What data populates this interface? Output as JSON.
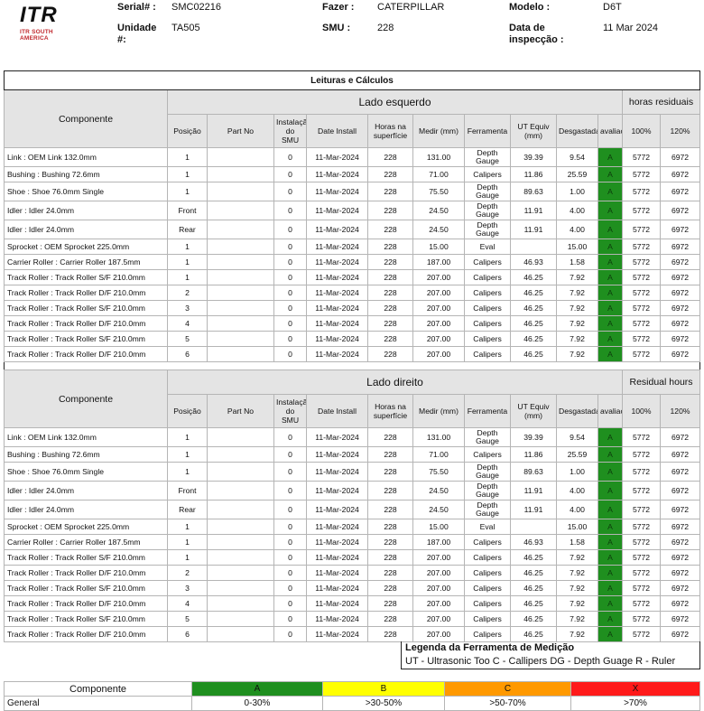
{
  "header": {
    "logo_text": "ITR",
    "logo_sub": "ITR SOUTH AMERICA",
    "serial_label": "Serial# :",
    "serial": "SMC02216",
    "unit_label": "Unidade #:",
    "unit": "TA505",
    "make_label": "Fazer :",
    "make": "CATERPILLAR",
    "smu_label": "SMU :",
    "smu": "228",
    "model_label": "Modelo :",
    "model": "D6T",
    "date_label": "Data de inspecção :",
    "date": "11 Mar 2024"
  },
  "table_title": "Leituras e Cálculos",
  "col": {
    "componente": "Componente",
    "posicao": "Posição",
    "part_no": "Part No",
    "instalacao": "Instalação do SMU",
    "date_install": "Date Install",
    "horas": "Horas na superfície",
    "medir": "Medir (mm)",
    "ferramenta": "Ferramenta",
    "ut_equiv": "UT Equiv (mm)",
    "desgastada": "Desgastada%",
    "avaliacao": "avaliação",
    "p100": "100%",
    "p120": "120%"
  },
  "left": {
    "section": "Lado esquerdo",
    "residual": "horas residuais"
  },
  "right": {
    "section": "Lado direito",
    "residual": "Residual hours"
  },
  "rows": [
    {
      "comp": "Link : OEM Link 132.0mm",
      "pos": "1",
      "part": "",
      "inst": "0",
      "date": "11-Mar-2024",
      "horas": "228",
      "medir": "131.00",
      "tool": "Depth Gauge",
      "ut": "39.39",
      "wear": "9.54",
      "av": "A",
      "r100": "5772",
      "r120": "6972"
    },
    {
      "comp": "Bushing : Bushing 72.6mm",
      "pos": "1",
      "part": "",
      "inst": "0",
      "date": "11-Mar-2024",
      "horas": "228",
      "medir": "71.00",
      "tool": "Calipers",
      "ut": "11.86",
      "wear": "25.59",
      "av": "A",
      "r100": "5772",
      "r120": "6972"
    },
    {
      "comp": "Shoe : Shoe 76.0mm Single",
      "pos": "1",
      "part": "",
      "inst": "0",
      "date": "11-Mar-2024",
      "horas": "228",
      "medir": "75.50",
      "tool": "Depth Gauge",
      "ut": "89.63",
      "wear": "1.00",
      "av": "A",
      "r100": "5772",
      "r120": "6972"
    },
    {
      "comp": "Idler : Idler 24.0mm",
      "pos": "Front",
      "part": "",
      "inst": "0",
      "date": "11-Mar-2024",
      "horas": "228",
      "medir": "24.50",
      "tool": "Depth Gauge",
      "ut": "11.91",
      "wear": "4.00",
      "av": "A",
      "r100": "5772",
      "r120": "6972"
    },
    {
      "comp": "Idler : Idler 24.0mm",
      "pos": "Rear",
      "part": "",
      "inst": "0",
      "date": "11-Mar-2024",
      "horas": "228",
      "medir": "24.50",
      "tool": "Depth Gauge",
      "ut": "11.91",
      "wear": "4.00",
      "av": "A",
      "r100": "5772",
      "r120": "6972"
    },
    {
      "comp": "Sprocket : OEM Sprocket 225.0mm",
      "pos": "1",
      "part": "",
      "inst": "0",
      "date": "11-Mar-2024",
      "horas": "228",
      "medir": "15.00",
      "tool": "Eval",
      "ut": "",
      "wear": "15.00",
      "av": "A",
      "r100": "5772",
      "r120": "6972"
    },
    {
      "comp": "Carrier Roller : Carrier Roller 187.5mm",
      "pos": "1",
      "part": "",
      "inst": "0",
      "date": "11-Mar-2024",
      "horas": "228",
      "medir": "187.00",
      "tool": "Calipers",
      "ut": "46.93",
      "wear": "1.58",
      "av": "A",
      "r100": "5772",
      "r120": "6972"
    },
    {
      "comp": "Track Roller : Track Roller S/F 210.0mm",
      "pos": "1",
      "part": "",
      "inst": "0",
      "date": "11-Mar-2024",
      "horas": "228",
      "medir": "207.00",
      "tool": "Calipers",
      "ut": "46.25",
      "wear": "7.92",
      "av": "A",
      "r100": "5772",
      "r120": "6972"
    },
    {
      "comp": "Track Roller : Track Roller D/F 210.0mm",
      "pos": "2",
      "part": "",
      "inst": "0",
      "date": "11-Mar-2024",
      "horas": "228",
      "medir": "207.00",
      "tool": "Calipers",
      "ut": "46.25",
      "wear": "7.92",
      "av": "A",
      "r100": "5772",
      "r120": "6972"
    },
    {
      "comp": "Track Roller : Track Roller S/F 210.0mm",
      "pos": "3",
      "part": "",
      "inst": "0",
      "date": "11-Mar-2024",
      "horas": "228",
      "medir": "207.00",
      "tool": "Calipers",
      "ut": "46.25",
      "wear": "7.92",
      "av": "A",
      "r100": "5772",
      "r120": "6972"
    },
    {
      "comp": "Track Roller : Track Roller D/F 210.0mm",
      "pos": "4",
      "part": "",
      "inst": "0",
      "date": "11-Mar-2024",
      "horas": "228",
      "medir": "207.00",
      "tool": "Calipers",
      "ut": "46.25",
      "wear": "7.92",
      "av": "A",
      "r100": "5772",
      "r120": "6972"
    },
    {
      "comp": "Track Roller : Track Roller S/F 210.0mm",
      "pos": "5",
      "part": "",
      "inst": "0",
      "date": "11-Mar-2024",
      "horas": "228",
      "medir": "207.00",
      "tool": "Calipers",
      "ut": "46.25",
      "wear": "7.92",
      "av": "A",
      "r100": "5772",
      "r120": "6972"
    },
    {
      "comp": "Track Roller : Track Roller D/F 210.0mm",
      "pos": "6",
      "part": "",
      "inst": "0",
      "date": "11-Mar-2024",
      "horas": "228",
      "medir": "207.00",
      "tool": "Calipers",
      "ut": "46.25",
      "wear": "7.92",
      "av": "A",
      "r100": "5772",
      "r120": "6972"
    }
  ],
  "legend": {
    "title": "Legenda da Ferramenta de Medição",
    "body": "UT - Ultrasonic Too   C - Callipers   DG - Depth Guage   R - Ruler"
  },
  "scale": {
    "label": "Componente",
    "row_label": "General",
    "bands": [
      {
        "grade": "A",
        "range": "0-30%",
        "color": "#1f8f1f"
      },
      {
        "grade": "B",
        "range": ">30-50%",
        "color": "#ffff00"
      },
      {
        "grade": "C",
        "range": ">50-70%",
        "color": "#ff9900"
      },
      {
        "grade": "X",
        "range": ">70%",
        "color": "#ff1a1a"
      }
    ]
  },
  "colors": {
    "ok": "#1f8f1f",
    "brand_red": "#c0282d"
  }
}
